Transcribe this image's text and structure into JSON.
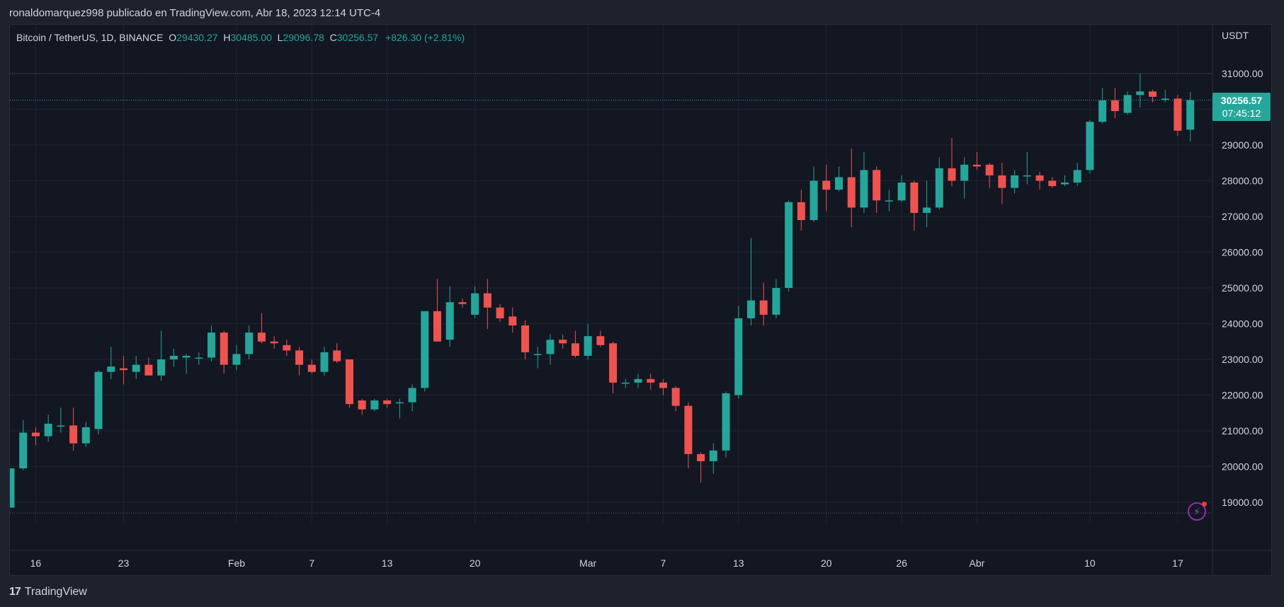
{
  "header": {
    "publisher": "ronaldomarquez998 publicado en TradingView.com, Abr 18, 2023 12:14 UTC-4"
  },
  "legend": {
    "symbol": "Bitcoin / TetherUS, 1D, BINANCE",
    "open_label": "O",
    "open": "29430.27",
    "high_label": "H",
    "high": "30485.00",
    "low_label": "L",
    "low": "29096.78",
    "close_label": "C",
    "close": "30256.57",
    "change": "+826.30 (+2.81%)"
  },
  "axis": {
    "currency": "USDT"
  },
  "badge": {
    "price": "30256.57",
    "countdown": "07:45:12"
  },
  "footer": {
    "brand_logo": "17",
    "brand": "TradingView"
  },
  "colors": {
    "up": "#26a69a",
    "down": "#ef5350",
    "background": "#131722",
    "grid": "#1f2430"
  },
  "icons": {
    "alert": "lightning-icon"
  },
  "chart_data": {
    "type": "candlestick",
    "y_ticks": [
      19000,
      20000,
      21000,
      22000,
      23000,
      24000,
      25000,
      26000,
      27000,
      28000,
      29000,
      30000,
      31000
    ],
    "y_tick_labels": [
      "19000.00",
      "20000.00",
      "21000.00",
      "22000.00",
      "23000.00",
      "24000.00",
      "25000.00",
      "26000.00",
      "27000.00",
      "28000.00",
      "29000.00",
      "30000.00",
      "31000.00"
    ],
    "ylim": [
      18100,
      31800
    ],
    "x_ticks": [
      {
        "label": "16",
        "index": 2
      },
      {
        "label": "23",
        "index": 9
      },
      {
        "label": "Feb",
        "index": 18
      },
      {
        "label": "7",
        "index": 24
      },
      {
        "label": "13",
        "index": 30
      },
      {
        "label": "20",
        "index": 37
      },
      {
        "label": "Mar",
        "index": 46
      },
      {
        "label": "7",
        "index": 52
      },
      {
        "label": "13",
        "index": 58
      },
      {
        "label": "20",
        "index": 65
      },
      {
        "label": "26",
        "index": 71
      },
      {
        "label": "Abr",
        "index": 77
      },
      {
        "label": "10",
        "index": 86
      },
      {
        "label": "17",
        "index": 93
      }
    ],
    "hlines": [
      31000,
      18700
    ],
    "last_price": 30256.57,
    "candles": [
      [
        18850,
        19950,
        18850,
        19950
      ],
      [
        19950,
        21300,
        19900,
        20950
      ],
      [
        20950,
        21100,
        20600,
        20850
      ],
      [
        20850,
        21450,
        20700,
        21200
      ],
      [
        21150,
        21650,
        20950,
        21150
      ],
      [
        21150,
        21650,
        20450,
        20650
      ],
      [
        20650,
        21250,
        20550,
        21100
      ],
      [
        21050,
        22700,
        20900,
        22650
      ],
      [
        22650,
        23350,
        22450,
        22800
      ],
      [
        22750,
        23100,
        22300,
        22700
      ],
      [
        22650,
        23100,
        22450,
        22850
      ],
      [
        22850,
        23050,
        22600,
        22550
      ],
      [
        22550,
        23800,
        22400,
        23000
      ],
      [
        23000,
        23300,
        22800,
        23100
      ],
      [
        23050,
        23150,
        22600,
        23100
      ],
      [
        23050,
        23200,
        22850,
        23050
      ],
      [
        23050,
        23950,
        22950,
        23750
      ],
      [
        23750,
        23800,
        22600,
        22850
      ],
      [
        22850,
        23400,
        22700,
        23150
      ],
      [
        23150,
        23950,
        23000,
        23750
      ],
      [
        23750,
        24300,
        23450,
        23500
      ],
      [
        23500,
        23650,
        23300,
        23450
      ],
      [
        23400,
        23550,
        23100,
        23250
      ],
      [
        23250,
        23350,
        22550,
        22850
      ],
      [
        22850,
        23000,
        22600,
        22650
      ],
      [
        22650,
        23350,
        22550,
        23200
      ],
      [
        23250,
        23450,
        22900,
        22950
      ],
      [
        23000,
        23000,
        21650,
        21750
      ],
      [
        21850,
        21900,
        21450,
        21600
      ],
      [
        21600,
        21900,
        21550,
        21850
      ],
      [
        21850,
        21900,
        21650,
        21750
      ],
      [
        21800,
        21900,
        21350,
        21800
      ],
      [
        21800,
        22300,
        21550,
        22200
      ],
      [
        22200,
        24350,
        22100,
        24350
      ],
      [
        24350,
        25250,
        23550,
        23500
      ],
      [
        23550,
        25050,
        23350,
        24600
      ],
      [
        24600,
        24700,
        24450,
        24550
      ],
      [
        24250,
        25050,
        24150,
        24850
      ],
      [
        24850,
        25250,
        23850,
        24450
      ],
      [
        24450,
        24550,
        24050,
        24150
      ],
      [
        24200,
        24450,
        23750,
        23950
      ],
      [
        23950,
        24100,
        23000,
        23200
      ],
      [
        23150,
        23350,
        22750,
        23150
      ],
      [
        23150,
        23700,
        22850,
        23550
      ],
      [
        23550,
        23700,
        23300,
        23450
      ],
      [
        23450,
        23800,
        23050,
        23100
      ],
      [
        23100,
        24000,
        23000,
        23650
      ],
      [
        23650,
        23800,
        23350,
        23400
      ],
      [
        23450,
        23500,
        22050,
        22350
      ],
      [
        22350,
        22450,
        22200,
        22350
      ],
      [
        22350,
        22600,
        22200,
        22450
      ],
      [
        22450,
        22600,
        22150,
        22350
      ],
      [
        22350,
        22450,
        22000,
        22200
      ],
      [
        22200,
        22250,
        21550,
        21700
      ],
      [
        21700,
        21800,
        19950,
        20350
      ],
      [
        20350,
        20400,
        19550,
        20150
      ],
      [
        20150,
        20650,
        19800,
        20450
      ],
      [
        20450,
        22100,
        20250,
        22050
      ],
      [
        22000,
        24500,
        21900,
        24150
      ],
      [
        24150,
        26400,
        23950,
        24650
      ],
      [
        24650,
        25150,
        23950,
        24250
      ],
      [
        24250,
        25250,
        24150,
        25000
      ],
      [
        25000,
        27450,
        24900,
        27400
      ],
      [
        27400,
        27750,
        26600,
        26900
      ],
      [
        26900,
        28400,
        26850,
        28000
      ],
      [
        28000,
        28450,
        27150,
        27750
      ],
      [
        27750,
        28400,
        27700,
        28100
      ],
      [
        28100,
        28900,
        26700,
        27250
      ],
      [
        27250,
        28800,
        27100,
        28300
      ],
      [
        28300,
        28400,
        27100,
        27450
      ],
      [
        27450,
        27750,
        27150,
        27450
      ],
      [
        27450,
        28150,
        27400,
        27950
      ],
      [
        27950,
        28000,
        26600,
        27100
      ],
      [
        27100,
        28000,
        26700,
        27250
      ],
      [
        27250,
        28650,
        27200,
        28350
      ],
      [
        28350,
        29200,
        27850,
        28000
      ],
      [
        28000,
        28650,
        27500,
        28450
      ],
      [
        28450,
        28800,
        28300,
        28400
      ],
      [
        28450,
        28500,
        27800,
        28150
      ],
      [
        28150,
        28500,
        27350,
        27800
      ],
      [
        27800,
        28300,
        27650,
        28150
      ],
      [
        28150,
        28800,
        27900,
        28150
      ],
      [
        28150,
        28250,
        27750,
        28000
      ],
      [
        28000,
        28100,
        27800,
        27850
      ],
      [
        27900,
        28150,
        27850,
        27950
      ],
      [
        27950,
        28500,
        27850,
        28300
      ],
      [
        28300,
        29700,
        28200,
        29650
      ],
      [
        29650,
        30600,
        29600,
        30250
      ],
      [
        30250,
        30600,
        29750,
        29950
      ],
      [
        29900,
        30500,
        29850,
        30400
      ],
      [
        30400,
        31000,
        30050,
        30500
      ],
      [
        30500,
        30550,
        30200,
        30350
      ],
      [
        30300,
        30550,
        30200,
        30300
      ],
      [
        30300,
        30400,
        29250,
        29400
      ],
      [
        29430.27,
        30485,
        29096.78,
        30256.57
      ]
    ]
  }
}
